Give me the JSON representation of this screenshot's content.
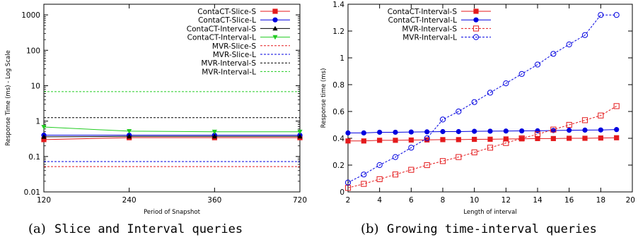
{
  "chart_data": [
    {
      "type": "line",
      "xlabel": "Period of Snapshot",
      "ylabel": "Response Time (ms) - Log Scale",
      "yscale": "log",
      "ylim": [
        0.01,
        2000
      ],
      "x": [
        120,
        240,
        360,
        720
      ],
      "x_tick_labels": [
        "120",
        "240",
        "360",
        "720"
      ],
      "y_tick_labels": [
        "0.01",
        "0.1",
        "1",
        "10",
        "100",
        "1000"
      ],
      "y_ticks": [
        0.01,
        0.1,
        1,
        10,
        100,
        1000
      ],
      "grid": false,
      "legend_position": "top-right",
      "caption_prefix": "(a)",
      "caption_text": "Slice and Interval queries",
      "series": [
        {
          "name": "ContaCT-Slice-S",
          "color": "#e41a1c",
          "marker": "square-filled",
          "dash": "solid",
          "values": [
            0.3,
            0.34,
            0.34,
            0.34
          ]
        },
        {
          "name": "ContaCT-Slice-L",
          "color": "#0000e0",
          "marker": "circle-filled",
          "dash": "solid",
          "values": [
            0.4,
            0.4,
            0.4,
            0.4
          ]
        },
        {
          "name": "ContaCT-Interval-S",
          "color": "#000000",
          "marker": "triangle-up",
          "dash": "solid",
          "values": [
            0.36,
            0.37,
            0.37,
            0.37
          ]
        },
        {
          "name": "ContaCT-Interval-L",
          "color": "#22cc22",
          "marker": "triangle-down",
          "dash": "solid",
          "values": [
            0.68,
            0.52,
            0.5,
            0.5
          ]
        },
        {
          "name": "MVR-Slice-S",
          "color": "#e41a1c",
          "marker": "none",
          "dash": "dashed",
          "values": [
            0.052,
            0.052,
            0.052,
            0.052
          ]
        },
        {
          "name": "MVR-Slice-L",
          "color": "#0000e0",
          "marker": "none",
          "dash": "dashed",
          "values": [
            0.072,
            0.072,
            0.072,
            0.072
          ]
        },
        {
          "name": "MVR-Interval-S",
          "color": "#000000",
          "marker": "none",
          "dash": "dashed",
          "values": [
            1.25,
            1.25,
            1.25,
            1.25
          ]
        },
        {
          "name": "MVR-Interval-L",
          "color": "#22cc22",
          "marker": "none",
          "dash": "dashed",
          "values": [
            6.8,
            6.8,
            6.8,
            6.8
          ]
        }
      ]
    },
    {
      "type": "line",
      "xlabel": "Length of interval",
      "ylabel": "Response time (ms)",
      "xlim": [
        2,
        20
      ],
      "ylim": [
        0,
        1.4
      ],
      "x": [
        2,
        3,
        4,
        5,
        6,
        7,
        8,
        9,
        10,
        11,
        12,
        13,
        14,
        15,
        16,
        17,
        18,
        19
      ],
      "x_ticks": [
        2,
        4,
        6,
        8,
        10,
        12,
        14,
        16,
        18,
        20
      ],
      "x_tick_labels": [
        "2",
        "4",
        "6",
        "8",
        "10",
        "12",
        "14",
        "16",
        "18",
        "20"
      ],
      "y_ticks": [
        0,
        0.2,
        0.4,
        0.6,
        0.8,
        1,
        1.2,
        1.4
      ],
      "y_tick_labels": [
        "0",
        "0.2",
        "0.4",
        "0.6",
        "0.8",
        "1",
        "1.2",
        "1.4"
      ],
      "grid": false,
      "legend_position": "top-left",
      "caption_prefix": "(b)",
      "caption_text": "Growing time-interval queries",
      "series": [
        {
          "name": "ContaCT-Interval-S",
          "color": "#e41a1c",
          "marker": "square-filled",
          "dash": "solid",
          "values": [
            0.38,
            0.38,
            0.385,
            0.385,
            0.387,
            0.388,
            0.39,
            0.39,
            0.392,
            0.393,
            0.395,
            0.396,
            0.398,
            0.398,
            0.4,
            0.4,
            0.402,
            0.404
          ]
        },
        {
          "name": "ContaCT-Interval-L",
          "color": "#0000e0",
          "marker": "circle-filled",
          "dash": "solid",
          "values": [
            0.44,
            0.44,
            0.445,
            0.445,
            0.447,
            0.448,
            0.45,
            0.45,
            0.452,
            0.453,
            0.454,
            0.455,
            0.456,
            0.458,
            0.46,
            0.461,
            0.462,
            0.465
          ]
        },
        {
          "name": "MVR-Interval-S",
          "color": "#e41a1c",
          "marker": "square-open",
          "dash": "dashed",
          "values": [
            0.03,
            0.06,
            0.095,
            0.13,
            0.165,
            0.2,
            0.23,
            0.26,
            0.295,
            0.33,
            0.365,
            0.4,
            0.43,
            0.465,
            0.5,
            0.535,
            0.57,
            0.64
          ]
        },
        {
          "name": "MVR-Interval-L",
          "color": "#0000e0",
          "marker": "circle-open",
          "dash": "dashed",
          "values": [
            0.07,
            0.13,
            0.2,
            0.26,
            0.33,
            0.4,
            0.54,
            0.6,
            0.67,
            0.74,
            0.81,
            0.88,
            0.95,
            1.03,
            1.1,
            1.17,
            1.32,
            1.32
          ]
        }
      ]
    }
  ]
}
